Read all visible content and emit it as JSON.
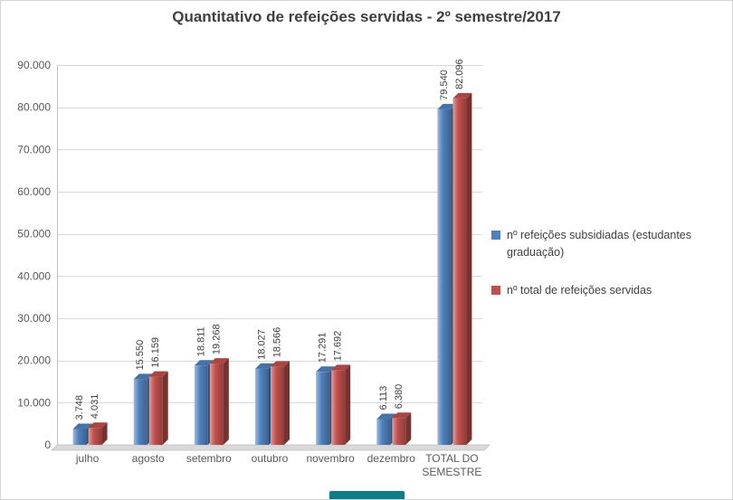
{
  "chart_data": {
    "type": "bar",
    "style": "3d-clustered",
    "title": "Quantitativo de refeições servidas - 2º semestre/2017",
    "categories": [
      "julho",
      "agosto",
      "setembro",
      "outubro",
      "novembro",
      "dezembro",
      "TOTAL DO SEMESTRE"
    ],
    "series": [
      {
        "name": "nº refeições subsidiadas (estudantes graduação)",
        "color": "#4F81BD",
        "values": [
          3748,
          15550,
          18811,
          18027,
          17291,
          6113,
          79540
        ]
      },
      {
        "name": "nº total de refeições servidas",
        "color": "#C0504D",
        "values": [
          4031,
          16159,
          19268,
          18566,
          17692,
          6380,
          82096
        ]
      }
    ],
    "ylim": [
      0,
      90000
    ],
    "ytick_step": 10000,
    "ytick_labels": [
      "0",
      "10.000",
      "20.000",
      "30.000",
      "40.000",
      "50.000",
      "60.000",
      "70.000",
      "80.000",
      "90.000"
    ],
    "grid": true,
    "legend_position": "right",
    "number_format": {
      "thousands_separator": "."
    }
  },
  "colors": {
    "grid": "#D9D9D9",
    "axis": "#BFBFBF",
    "floor": "#D9D9D9",
    "tick_text": "#595959",
    "category_text": "#595959",
    "value_label": "#404040",
    "title_text": "#3F3F3F",
    "legend_text": "#3F3F3F",
    "scrollbar": "#0E7D8A",
    "border": "#D3D3D3"
  }
}
